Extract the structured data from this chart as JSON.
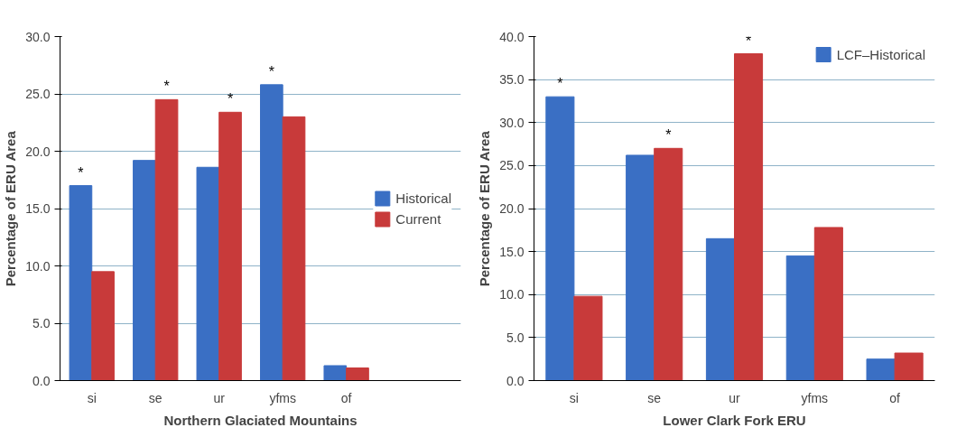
{
  "chart_data": [
    {
      "type": "bar",
      "xlabel": "Northern Glaciated Mountains",
      "ylabel": "Percentage of ERU Area",
      "categories": [
        "si",
        "se",
        "ur",
        "yfms",
        "of"
      ],
      "series": [
        {
          "name": "Historical",
          "color": "#3a6fc4",
          "values": [
            17.0,
            19.2,
            18.6,
            25.8,
            1.3
          ]
        },
        {
          "name": "Current",
          "color": "#c83a3a",
          "values": [
            9.5,
            24.5,
            23.4,
            23.0,
            1.1
          ]
        }
      ],
      "ylim": [
        0,
        30
      ],
      "yticks": [
        {
          "value": 0,
          "label": "0.0"
        },
        {
          "value": 5,
          "label": "5.0"
        },
        {
          "value": 10,
          "label": "10.0"
        },
        {
          "value": 15,
          "label": "15.0"
        },
        {
          "value": 20,
          "label": "20.0"
        },
        {
          "value": 25,
          "label": "25.0"
        },
        {
          "value": 30,
          "label": "30.0"
        }
      ],
      "grid": "y",
      "legend": "right",
      "annotations": [
        {
          "text": "*",
          "x": "si",
          "y": 17.0
        },
        {
          "text": "*",
          "x": "se",
          "y": 24.5
        },
        {
          "text": "*",
          "x": "ur",
          "y": 23.4
        },
        {
          "text": "*",
          "x": "yfms",
          "y": 25.8
        }
      ]
    },
    {
      "type": "bar",
      "xlabel": "Lower Clark Fork ERU",
      "ylabel": "Percentage of ERU Area",
      "categories": [
        "si",
        "se",
        "ur",
        "yfms",
        "of"
      ],
      "series": [
        {
          "name": "LCF–Historical",
          "color": "#3a6fc4",
          "values": [
            33.0,
            26.2,
            16.5,
            14.5,
            2.5
          ]
        },
        {
          "color": "#c83a3a",
          "values": [
            9.8,
            27.0,
            38.0,
            17.8,
            3.2
          ]
        }
      ],
      "ylim": [
        0,
        40
      ],
      "yticks": [
        {
          "value": 0,
          "label": "0.0"
        },
        {
          "value": 5,
          "label": "5.0"
        },
        {
          "value": 10,
          "label": "10.0"
        },
        {
          "value": 15,
          "label": "15.0"
        },
        {
          "value": 20,
          "label": "20.0"
        },
        {
          "value": 25,
          "label": "25.0"
        },
        {
          "value": 30,
          "label": "30.0"
        },
        {
          "value": 35,
          "label": "35.0"
        },
        {
          "value": 40,
          "label": "40.0"
        }
      ],
      "grid": "y",
      "legend": "top right",
      "annotations": [
        {
          "text": "*",
          "x": "si",
          "y": 33.0
        },
        {
          "text": "*",
          "x": "se",
          "y": 27.0
        },
        {
          "text": "*",
          "x": "ur",
          "y": 38.0
        }
      ]
    }
  ]
}
